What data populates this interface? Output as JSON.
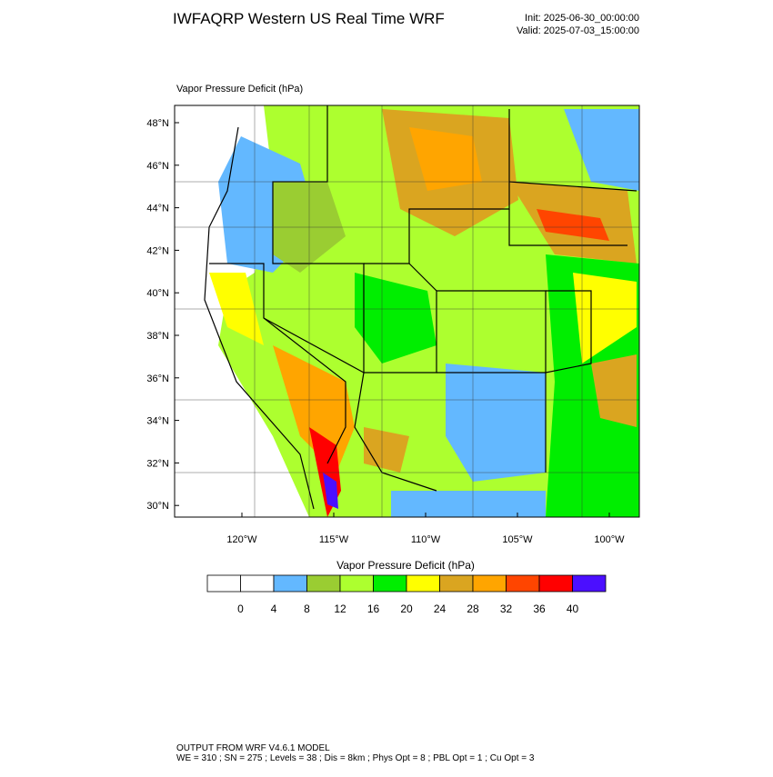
{
  "header": {
    "title": "IWFAQRP Western US Real Time WRF",
    "init": "Init: 2025-06-30_00:00:00",
    "valid": "Valid: 2025-07-03_15:00:00"
  },
  "map": {
    "title": "Vapor Pressure Deficit   (hPa)",
    "lat_labels": [
      "48°N",
      "46°N",
      "44°N",
      "42°N",
      "40°N",
      "38°N",
      "36°N",
      "34°N",
      "32°N",
      "30°N"
    ],
    "lon_labels": [
      "120°W",
      "115°W",
      "110°W",
      "105°W",
      "100°W"
    ]
  },
  "colorbar": {
    "title": "Vapor Pressure Deficit  (hPa)",
    "levels": [
      0,
      4,
      8,
      12,
      16,
      20,
      24,
      28,
      32,
      36,
      40
    ],
    "colors": [
      "#ffffff",
      "#ffffff",
      "#63b8ff",
      "#9acd32",
      "#adff2f",
      "#00ee00",
      "#ffff00",
      "#daa520",
      "#ffa500",
      "#ff4500",
      "#ff0000",
      "#4b0fff"
    ]
  },
  "footer": {
    "line1": "OUTPUT FROM WRF V4.6.1 MODEL",
    "line2": "WE = 310 ; SN = 275 ; Levels = 38 ; Dis = 8km ; Phys Opt = 8 ; PBL Opt = 1 ; Cu Opt = 3"
  }
}
